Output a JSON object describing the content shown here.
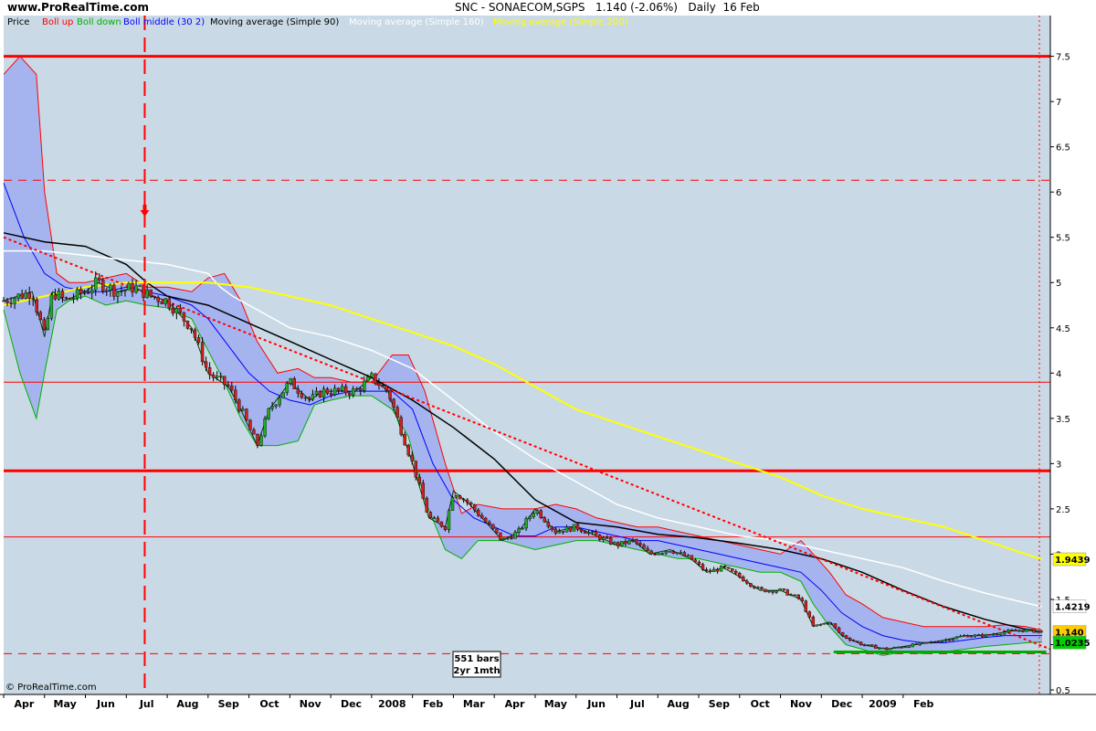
{
  "header": {
    "site": "www.ProRealTime.com",
    "instrument": "SNC - SONAECOM,SGPS",
    "last": "1.140 (-2.06%)",
    "period": "Daily",
    "date": "16 Feb"
  },
  "legend": {
    "price": "Price",
    "boll_up": "Boll up",
    "boll_down": "Boll down",
    "boll_middle": "Boll middle (30 2)",
    "ma90": "Moving average (Simple 90)",
    "ma160": "Moving average (Simple 160)",
    "ma200": "Moving average (Simple 200)"
  },
  "bars_box": {
    "line1": "551 bars",
    "line2": "2yr 1mth"
  },
  "copyright": "© ProRealTime.com",
  "colors": {
    "background": "#c9dae6",
    "band_fill": "#a5b4ee",
    "boll_up": "#ff0000",
    "boll_down": "#00b000",
    "boll_middle": "#0000ff",
    "ma90": "#000000",
    "ma160": "#ffffff",
    "ma200": "#ffff00",
    "hline": "#ff0000",
    "trend": "#ff0000",
    "support": "#00aa00"
  },
  "price_labels": [
    {
      "text": "1.140",
      "value": 1.14,
      "kind": "last"
    },
    {
      "text": "1.0235",
      "value": 1.0235,
      "kind": "boll_down"
    },
    {
      "text": "1.4219",
      "value": 1.4219,
      "kind": "ma160"
    },
    {
      "text": "1.9439",
      "value": 1.9439,
      "kind": "ma200"
    }
  ],
  "chart_data": {
    "type": "line",
    "title": "SNC - SONAECOM,SGPS",
    "period": "Daily",
    "y_ticks": [
      "0.5",
      "1",
      "1.5",
      "2",
      "2.5",
      "3",
      "3.5",
      "4",
      "4.5",
      "5",
      "5.5",
      "6",
      "6.5",
      "7",
      "7.5"
    ],
    "ylim": [
      0.45,
      7.95
    ],
    "x_ticks": [
      "Apr",
      "May",
      "Jun",
      "Jul",
      "Aug",
      "Sep",
      "Oct",
      "Nov",
      "Dec",
      "2008",
      "Feb",
      "Mar",
      "Apr",
      "May",
      "Jun",
      "Jul",
      "Aug",
      "Sep",
      "Oct",
      "Nov",
      "Dec",
      "2009",
      "Feb"
    ],
    "x_range_months": [
      0,
      25.6
    ],
    "horizontal_lines": [
      {
        "value": 7.5,
        "style": "solid-thick"
      },
      {
        "value": 6.13,
        "style": "dashed"
      },
      {
        "value": 3.9,
        "style": "solid"
      },
      {
        "value": 2.92,
        "style": "solid-thick"
      },
      {
        "value": 2.19,
        "style": "solid"
      },
      {
        "value": 0.9,
        "style": "dashed"
      }
    ],
    "vertical_marker_month": 3.45,
    "arrow": {
      "month": 3.45,
      "price": 5.78,
      "direction": "down"
    },
    "support_line": {
      "from_month": 20.3,
      "to_month": 25.5,
      "value": 0.92
    },
    "trend_line": {
      "from": [
        0.0,
        5.5
      ],
      "to": [
        25.6,
        0.95
      ]
    },
    "series": [
      {
        "name": "Price",
        "x": [
          0.0,
          0.7,
          1.0,
          1.2,
          1.5,
          2.0,
          2.3,
          2.8,
          3.2,
          3.6,
          4.0,
          4.6,
          5.0,
          5.5,
          5.8,
          6.2,
          6.5,
          7.0,
          7.5,
          7.8,
          8.0,
          8.6,
          9.0,
          9.4,
          9.7,
          10.0,
          10.4,
          10.8,
          11.0,
          11.4,
          11.8,
          12.2,
          12.6,
          13.0,
          13.5,
          14.0,
          14.5,
          15.0,
          15.4,
          15.8,
          16.3,
          16.8,
          17.2,
          17.6,
          18.0,
          18.5,
          19.0,
          19.5,
          19.8,
          20.2,
          20.5,
          21.0,
          21.6,
          22.0,
          22.6,
          23.0,
          23.5,
          24.0,
          24.6,
          25.0,
          25.4
        ],
        "values": [
          4.8,
          4.9,
          4.4,
          4.9,
          4.8,
          4.9,
          5.0,
          4.9,
          4.95,
          4.85,
          4.8,
          4.5,
          4.0,
          3.85,
          3.6,
          3.2,
          3.6,
          3.9,
          3.7,
          3.8,
          3.8,
          3.8,
          3.95,
          3.8,
          3.4,
          3.0,
          2.4,
          2.3,
          2.7,
          2.55,
          2.35,
          2.15,
          2.25,
          2.5,
          2.25,
          2.3,
          2.2,
          2.1,
          2.15,
          2.0,
          2.05,
          1.95,
          1.8,
          1.85,
          1.75,
          1.6,
          1.6,
          1.5,
          1.2,
          1.25,
          1.1,
          1.0,
          0.95,
          0.98,
          1.02,
          1.05,
          1.1,
          1.1,
          1.15,
          1.16,
          1.14
        ]
      },
      {
        "name": "Boll up",
        "x": [
          0.0,
          0.4,
          0.8,
          1.0,
          1.3,
          1.6,
          2.0,
          2.5,
          3.0,
          3.5,
          4.0,
          4.6,
          5.0,
          5.4,
          5.8,
          6.2,
          6.7,
          7.2,
          7.6,
          8.0,
          8.5,
          9.0,
          9.5,
          9.9,
          10.3,
          10.8,
          11.2,
          11.6,
          12.2,
          12.6,
          13.0,
          13.5,
          14.0,
          14.5,
          15.0,
          15.5,
          16.0,
          16.5,
          17.0,
          17.5,
          18.0,
          18.5,
          19.0,
          19.5,
          19.8,
          20.2,
          20.6,
          21.0,
          21.5,
          22.0,
          22.5,
          23.0,
          23.5,
          24.0,
          24.5,
          25.0,
          25.4
        ],
        "values": [
          7.3,
          7.5,
          7.3,
          6.0,
          5.1,
          5.0,
          5.0,
          5.05,
          5.1,
          4.95,
          4.95,
          4.9,
          5.05,
          5.1,
          4.8,
          4.35,
          4.0,
          4.05,
          3.95,
          3.95,
          3.9,
          3.9,
          4.2,
          4.2,
          3.8,
          3.0,
          2.45,
          2.55,
          2.5,
          2.5,
          2.5,
          2.55,
          2.5,
          2.4,
          2.35,
          2.3,
          2.3,
          2.25,
          2.2,
          2.15,
          2.1,
          2.05,
          2.0,
          2.15,
          2.0,
          1.8,
          1.55,
          1.45,
          1.3,
          1.25,
          1.2,
          1.2,
          1.2,
          1.2,
          1.22,
          1.2,
          1.16
        ]
      },
      {
        "name": "Boll down",
        "x": [
          0.0,
          0.4,
          0.8,
          1.0,
          1.3,
          1.6,
          2.0,
          2.5,
          3.0,
          3.5,
          4.0,
          4.6,
          5.0,
          5.4,
          5.8,
          6.2,
          6.7,
          7.2,
          7.6,
          8.0,
          8.5,
          9.0,
          9.5,
          9.9,
          10.3,
          10.8,
          11.2,
          11.6,
          12.2,
          12.6,
          13.0,
          13.5,
          14.0,
          14.5,
          15.0,
          15.5,
          16.0,
          16.5,
          17.0,
          17.5,
          18.0,
          18.5,
          19.0,
          19.5,
          19.8,
          20.2,
          20.6,
          21.0,
          21.5,
          22.0,
          22.5,
          23.0,
          23.5,
          24.0,
          24.5,
          25.0,
          25.4
        ],
        "values": [
          4.7,
          4.0,
          3.5,
          4.0,
          4.7,
          4.8,
          4.85,
          4.75,
          4.8,
          4.75,
          4.72,
          4.6,
          4.25,
          3.9,
          3.5,
          3.2,
          3.2,
          3.25,
          3.65,
          3.7,
          3.75,
          3.75,
          3.6,
          3.3,
          2.6,
          2.05,
          1.95,
          2.15,
          2.15,
          2.1,
          2.05,
          2.1,
          2.15,
          2.15,
          2.1,
          2.05,
          2.0,
          1.95,
          1.95,
          1.9,
          1.85,
          1.8,
          1.8,
          1.7,
          1.45,
          1.2,
          1.0,
          0.95,
          0.88,
          0.92,
          0.9,
          0.92,
          0.95,
          0.98,
          1.0,
          1.02,
          1.03
        ]
      },
      {
        "name": "Boll middle (30 2)",
        "x": [
          0.0,
          0.5,
          1.0,
          1.5,
          2.0,
          2.5,
          3.0,
          3.5,
          4.0,
          4.6,
          5.0,
          5.5,
          6.0,
          6.5,
          7.0,
          7.5,
          8.0,
          8.5,
          9.0,
          9.5,
          10.0,
          10.5,
          11.0,
          11.5,
          12.0,
          12.5,
          13.0,
          13.5,
          14.0,
          14.5,
          15.0,
          15.5,
          16.0,
          16.5,
          17.0,
          17.5,
          18.0,
          18.5,
          19.0,
          19.5,
          20.0,
          20.5,
          21.0,
          21.5,
          22.0,
          22.5,
          23.0,
          23.5,
          24.0,
          24.5,
          25.0,
          25.4
        ],
        "values": [
          6.1,
          5.5,
          5.1,
          4.95,
          4.9,
          4.9,
          4.95,
          4.9,
          4.85,
          4.75,
          4.6,
          4.3,
          4.0,
          3.8,
          3.7,
          3.65,
          3.75,
          3.8,
          3.8,
          3.8,
          3.6,
          3.0,
          2.6,
          2.4,
          2.3,
          2.2,
          2.2,
          2.3,
          2.3,
          2.25,
          2.2,
          2.15,
          2.15,
          2.1,
          2.05,
          2.0,
          1.95,
          1.9,
          1.85,
          1.8,
          1.6,
          1.35,
          1.2,
          1.1,
          1.05,
          1.02,
          1.02,
          1.05,
          1.08,
          1.1,
          1.1,
          1.1
        ]
      },
      {
        "name": "Moving average (Simple 90)",
        "x": [
          0.0,
          1.0,
          2.0,
          3.0,
          3.5,
          4.0,
          5.0,
          6.0,
          7.0,
          8.0,
          9.0,
          10.0,
          11.0,
          12.0,
          13.0,
          14.0,
          15.0,
          16.0,
          17.0,
          18.0,
          19.0,
          20.0,
          21.0,
          22.0,
          23.0,
          24.0,
          25.0,
          25.4
        ],
        "values": [
          5.55,
          5.45,
          5.4,
          5.2,
          5.0,
          4.85,
          4.75,
          4.55,
          4.35,
          4.15,
          3.95,
          3.7,
          3.4,
          3.05,
          2.6,
          2.35,
          2.3,
          2.22,
          2.18,
          2.12,
          2.05,
          1.95,
          1.8,
          1.6,
          1.42,
          1.28,
          1.17,
          1.14
        ]
      },
      {
        "name": "Moving average (Simple 160)",
        "x": [
          0.0,
          1.0,
          2.0,
          3.0,
          4.0,
          5.0,
          5.3,
          5.6,
          6.0,
          6.8,
          7.0,
          8.0,
          9.0,
          10.0,
          11.0,
          12.0,
          13.0,
          14.0,
          15.0,
          16.0,
          17.0,
          18.0,
          19.0,
          20.0,
          21.0,
          22.0,
          23.0,
          24.0,
          25.0,
          25.4
        ],
        "values": [
          5.35,
          5.35,
          5.3,
          5.25,
          5.2,
          5.1,
          4.95,
          4.85,
          4.75,
          4.55,
          4.5,
          4.4,
          4.25,
          4.05,
          3.7,
          3.35,
          3.05,
          2.8,
          2.55,
          2.4,
          2.3,
          2.2,
          2.15,
          2.05,
          1.95,
          1.85,
          1.7,
          1.57,
          1.46,
          1.42
        ]
      },
      {
        "name": "Moving average (Simple 200)",
        "x": [
          0.0,
          1.0,
          2.0,
          3.0,
          4.0,
          5.0,
          6.0,
          7.0,
          8.0,
          9.0,
          10.0,
          11.0,
          12.0,
          13.0,
          14.0,
          15.0,
          16.0,
          17.0,
          18.0,
          19.0,
          20.0,
          21.0,
          22.0,
          23.0,
          24.0,
          25.0,
          25.4
        ],
        "values": [
          4.75,
          4.85,
          4.95,
          5.0,
          5.0,
          5.0,
          4.95,
          4.85,
          4.75,
          4.6,
          4.45,
          4.3,
          4.1,
          3.85,
          3.6,
          3.45,
          3.3,
          3.15,
          3.0,
          2.85,
          2.65,
          2.5,
          2.4,
          2.3,
          2.15,
          2.0,
          1.94
        ]
      }
    ]
  }
}
